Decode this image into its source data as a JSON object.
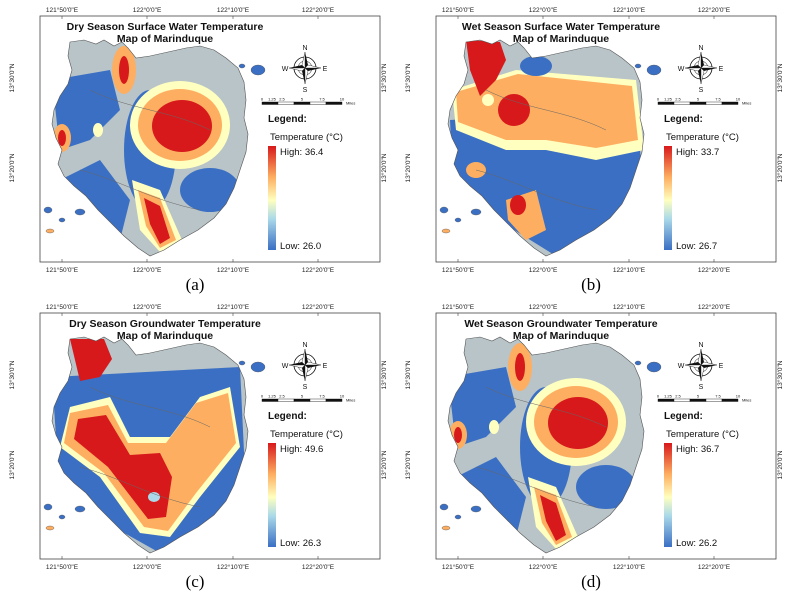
{
  "figure": {
    "panels": [
      {
        "id": "a",
        "label": "(a)",
        "title_line1": "Dry Season Surface Water Temperature",
        "title_line2": "Map of Marinduque",
        "legend_heading": "Legend:",
        "legend_unit": "Temperature (°C)",
        "high_label": "High: 36.4",
        "low_label": "Low: 26.0",
        "hotspot": "east-center"
      },
      {
        "id": "b",
        "label": "(b)",
        "title_line1": "Wet Season Surface Water Temperature",
        "title_line2": "Map of Marinduque",
        "legend_heading": "Legend:",
        "legend_unit": "Temperature (°C)",
        "high_label": "High: 33.7",
        "low_label": "Low: 26.7",
        "hotspot": "north-center"
      },
      {
        "id": "c",
        "label": "(c)",
        "title_line1": "Dry Season Groundwater Temperature",
        "title_line2": "Map of Marinduque",
        "legend_heading": "Legend:",
        "legend_unit": "Temperature (°C)",
        "high_label": "High: 49.6",
        "low_label": "Low: 26.3",
        "hotspot": "diagonal-band"
      },
      {
        "id": "d",
        "label": "(d)",
        "title_line1": "Wet Season Groundwater Temperature",
        "title_line2": "Map of Marinduque",
        "legend_heading": "Legend:",
        "legend_unit": "Temperature (°C)",
        "high_label": "High: 36.7",
        "low_label": "Low: 26.2",
        "hotspot": "east-center"
      }
    ],
    "longitude_ticks": [
      "121°50'0\"E",
      "122°0'0\"E",
      "122°10'0\"E",
      "122°20'0\"E"
    ],
    "latitude_ticks": [
      "13°30'0\"N",
      "13°20'0\"N"
    ],
    "compass": {
      "n": "N",
      "s": "S",
      "e": "E",
      "w": "W"
    },
    "scale_bar": {
      "ticks": [
        "0",
        "1.25",
        "2.5",
        "5",
        "7.5",
        "10"
      ],
      "unit": "Miles"
    },
    "colors": {
      "high": "#d7191c",
      "warm": "#fdae61",
      "mid": "#ffffbf",
      "cool": "#abd9e9",
      "low": "#3a6fc4",
      "neutral": "#b8c4c8"
    }
  }
}
